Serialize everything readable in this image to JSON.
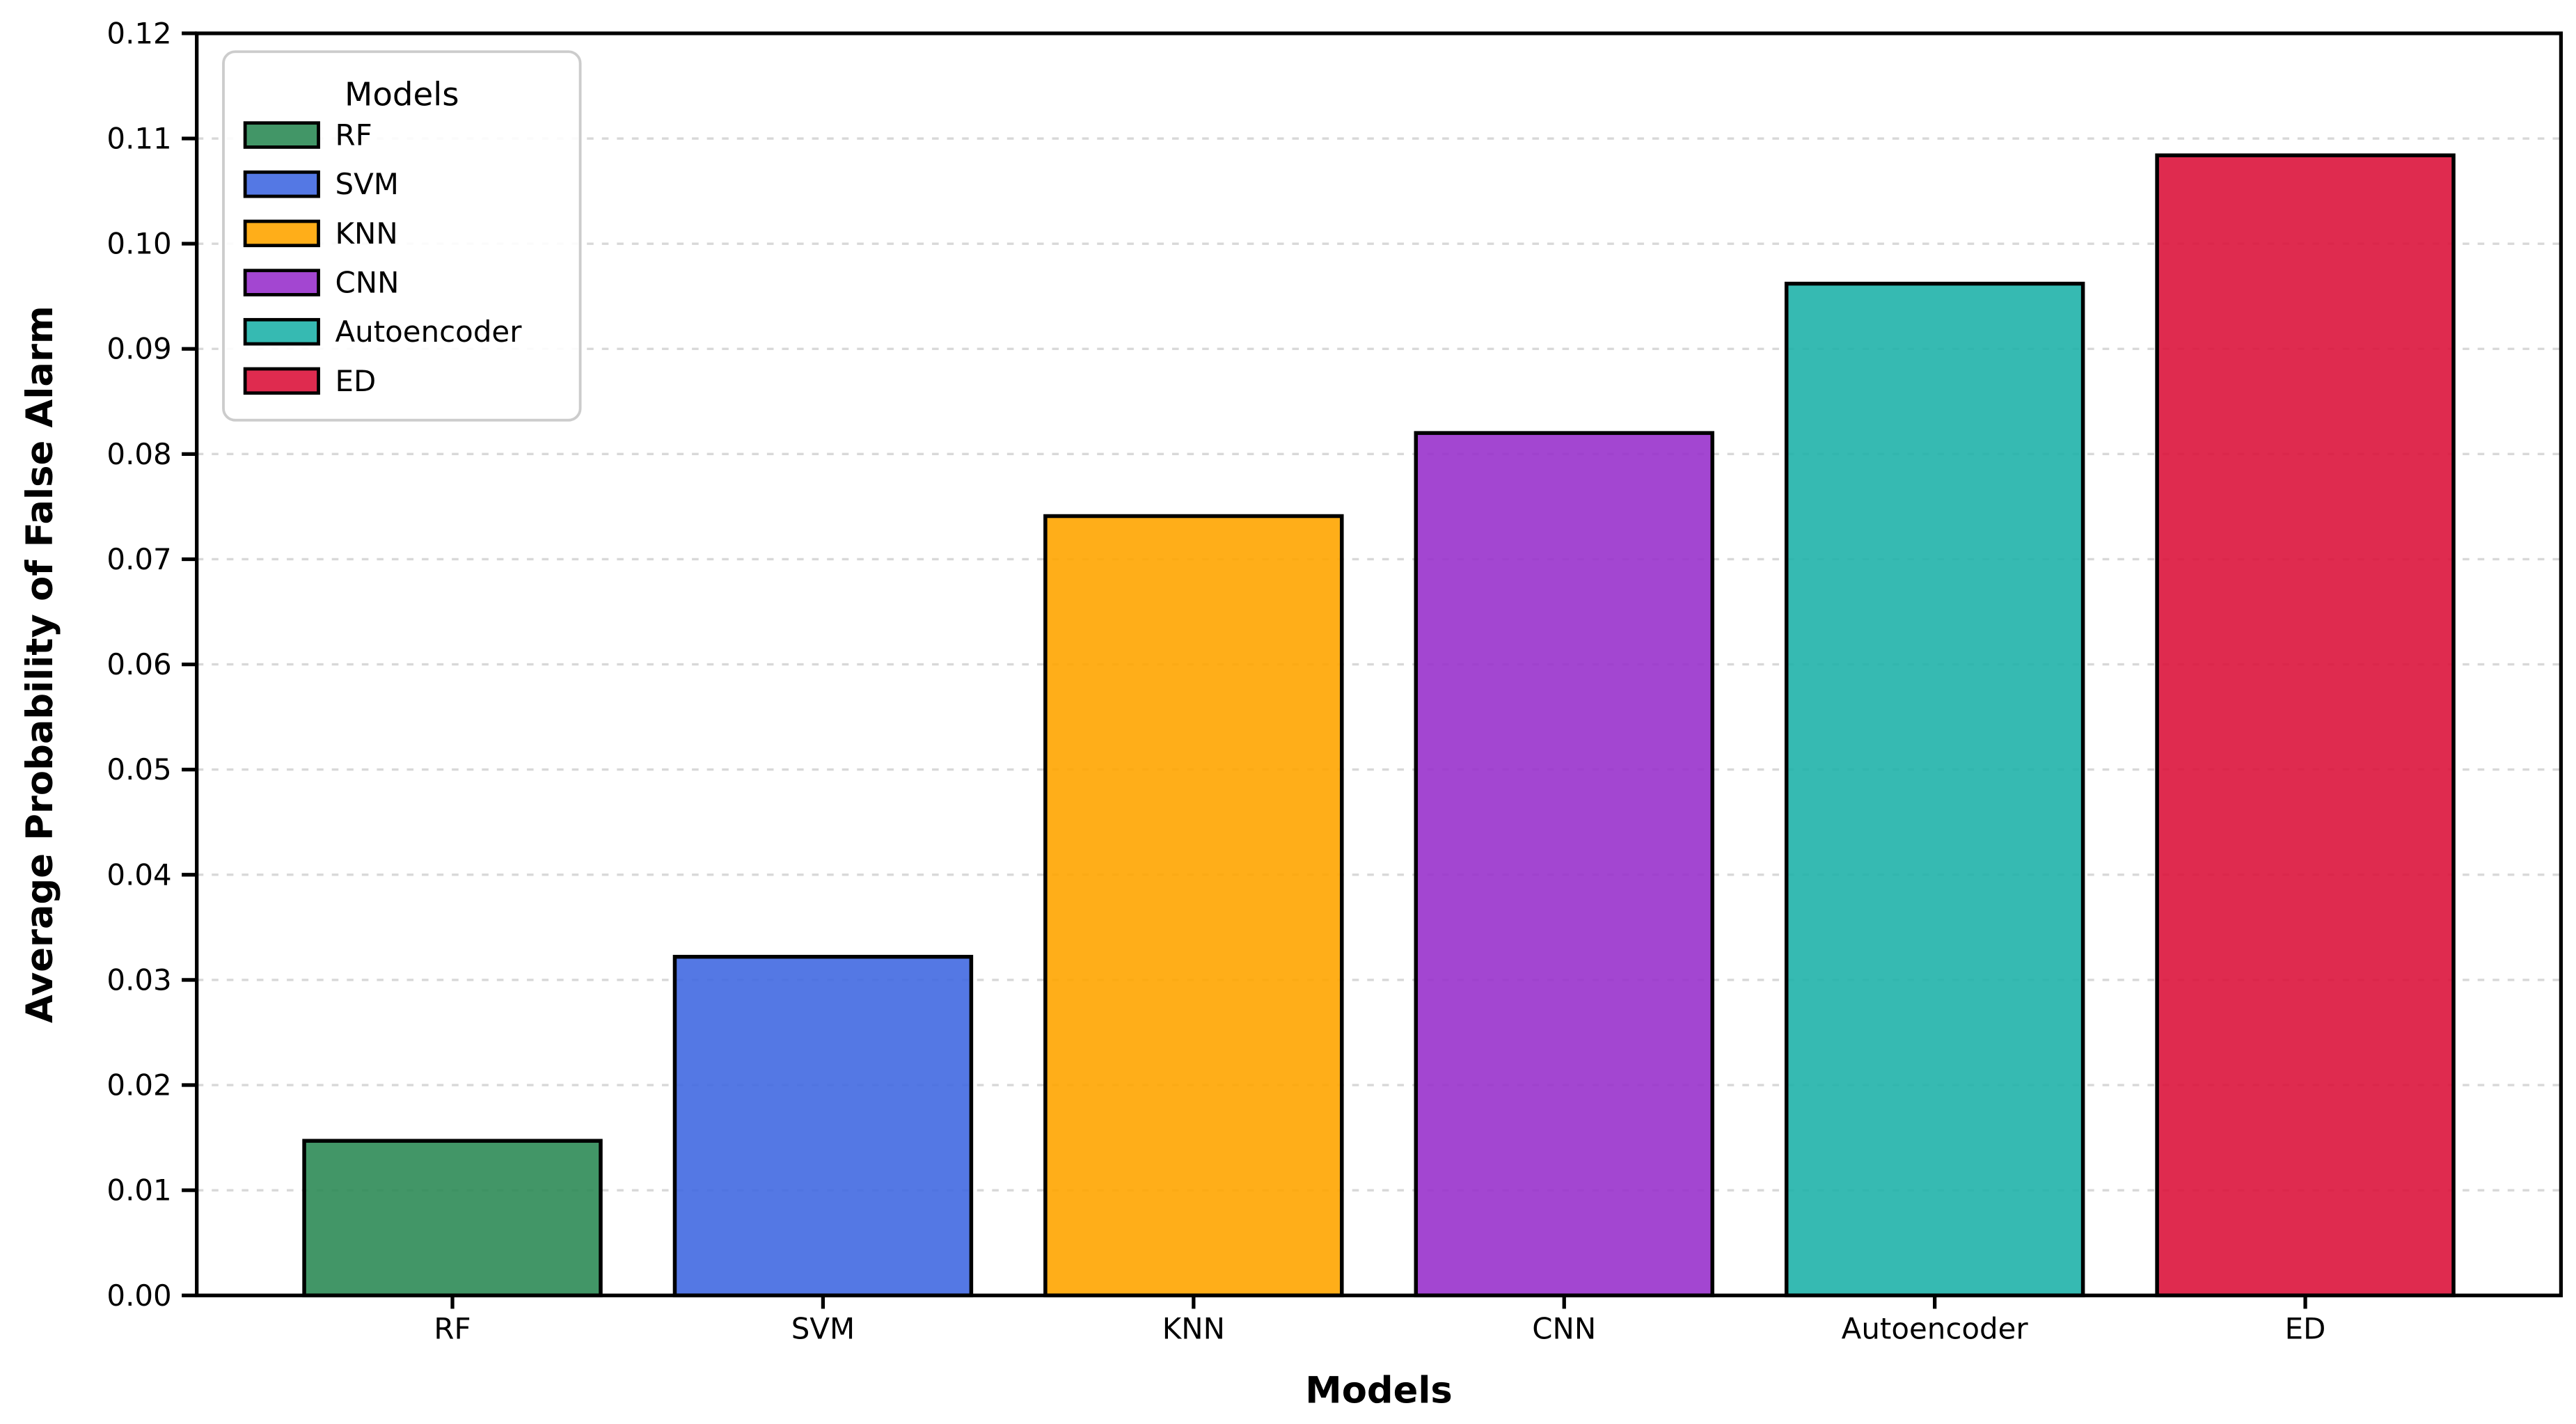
{
  "chart_data": {
    "type": "bar",
    "title": "",
    "xlabel": "Models",
    "ylabel": "Average Probability of False Alarm",
    "categories": [
      "RF",
      "SVM",
      "KNN",
      "CNN",
      "Autoencoder",
      "ED"
    ],
    "values": [
      0.0147,
      0.0322,
      0.0741,
      0.082,
      0.0962,
      0.1084
    ],
    "bar_colors": [
      "#2E8B57",
      "#4169E1",
      "#FFA500",
      "#9932CC",
      "#20B2AA",
      "#DC143C"
    ],
    "bar_opacity": 0.9,
    "bar_edge_color": "#000000",
    "ylim": [
      0,
      0.12
    ],
    "ytick_step": 0.01,
    "ytick_labels": [
      "0.00",
      "0.01",
      "0.02",
      "0.03",
      "0.04",
      "0.05",
      "0.06",
      "0.07",
      "0.08",
      "0.09",
      "0.10",
      "0.11",
      "0.12"
    ],
    "grid": {
      "axis": "y",
      "style": "dashed",
      "color": "#d4d4d4"
    },
    "legend": {
      "title": "Models",
      "position": "upper-left",
      "entries": [
        {
          "label": "RF",
          "color": "#2E8B57"
        },
        {
          "label": "SVM",
          "color": "#4169E1"
        },
        {
          "label": "KNN",
          "color": "#FFA500"
        },
        {
          "label": "CNN",
          "color": "#9932CC"
        },
        {
          "label": "Autoencoder",
          "color": "#20B2AA"
        },
        {
          "label": "ED",
          "color": "#DC143C"
        }
      ]
    }
  }
}
